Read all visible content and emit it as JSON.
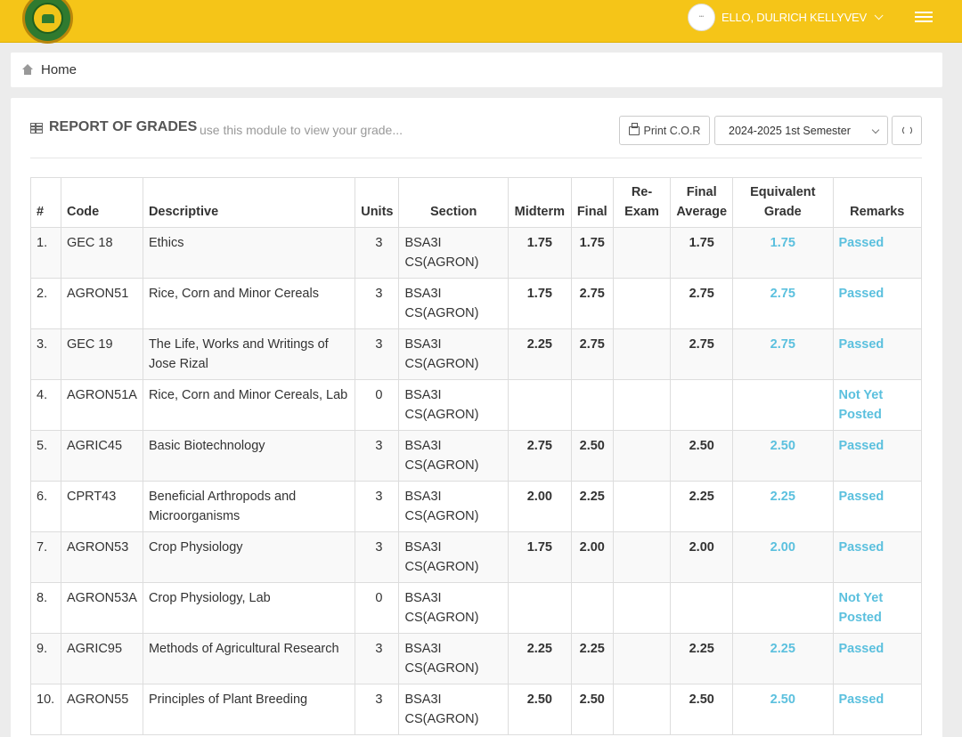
{
  "header": {
    "user_name": "ELLO, DULRICH KELLYVEV"
  },
  "breadcrumb": {
    "label": "Home"
  },
  "panel": {
    "title": "REPORT OF GRADES",
    "subtitle": "use this module to view your grade...",
    "print_label": "Print C.O.R",
    "semester": "2024-2025 1st Semester"
  },
  "colors": {
    "topbar": "#f5c518",
    "accent": "#5bc0de"
  },
  "icons": [
    "logo",
    "avatar",
    "chevron-down-icon",
    "menu-icon",
    "home-icon",
    "table-icon",
    "printer-icon",
    "refresh-icon"
  ],
  "table": {
    "headers": [
      "#",
      "Code",
      "Descriptive",
      "Units",
      "Section",
      "Midterm",
      "Final",
      "Re-Exam",
      "Final Average",
      "Equivalent Grade",
      "Remarks"
    ],
    "rows": [
      {
        "no": "1.",
        "code": "GEC 18",
        "desc": "Ethics",
        "units": "3",
        "section": "BSA3I CS(AGRON)",
        "midterm": "1.75",
        "final": "1.75",
        "reexam": "",
        "avg": "1.75",
        "eq": "1.75",
        "remarks": "Passed"
      },
      {
        "no": "2.",
        "code": "AGRON51",
        "desc": "Rice, Corn and Minor Cereals",
        "units": "3",
        "section": "BSA3I CS(AGRON)",
        "midterm": "1.75",
        "final": "2.75",
        "reexam": "",
        "avg": "2.75",
        "eq": "2.75",
        "remarks": "Passed"
      },
      {
        "no": "3.",
        "code": "GEC 19",
        "desc": "The Life, Works and Writings of Jose Rizal",
        "units": "3",
        "section": "BSA3I CS(AGRON)",
        "midterm": "2.25",
        "final": "2.75",
        "reexam": "",
        "avg": "2.75",
        "eq": "2.75",
        "remarks": "Passed"
      },
      {
        "no": "4.",
        "code": "AGRON51A",
        "desc": "Rice, Corn and Minor Cereals, Lab",
        "units": "0",
        "section": "BSA3I CS(AGRON)",
        "midterm": "",
        "final": "",
        "reexam": "",
        "avg": "",
        "eq": "",
        "remarks": "Not Yet Posted"
      },
      {
        "no": "5.",
        "code": "AGRIC45",
        "desc": "Basic Biotechnology",
        "units": "3",
        "section": "BSA3I CS(AGRON)",
        "midterm": "2.75",
        "final": "2.50",
        "reexam": "",
        "avg": "2.50",
        "eq": "2.50",
        "remarks": "Passed"
      },
      {
        "no": "6.",
        "code": "CPRT43",
        "desc": "Beneficial Arthropods and Microorganisms",
        "units": "3",
        "section": "BSA3I CS(AGRON)",
        "midterm": "2.00",
        "final": "2.25",
        "reexam": "",
        "avg": "2.25",
        "eq": "2.25",
        "remarks": "Passed"
      },
      {
        "no": "7.",
        "code": "AGRON53",
        "desc": "Crop Physiology",
        "units": "3",
        "section": "BSA3I CS(AGRON)",
        "midterm": "1.75",
        "final": "2.00",
        "reexam": "",
        "avg": "2.00",
        "eq": "2.00",
        "remarks": "Passed"
      },
      {
        "no": "8.",
        "code": "AGRON53A",
        "desc": "Crop Physiology, Lab",
        "units": "0",
        "section": "BSA3I CS(AGRON)",
        "midterm": "",
        "final": "",
        "reexam": "",
        "avg": "",
        "eq": "",
        "remarks": "Not Yet Posted"
      },
      {
        "no": "9.",
        "code": "AGRIC95",
        "desc": "Methods of Agricultural Research",
        "units": "3",
        "section": "BSA3I CS(AGRON)",
        "midterm": "2.25",
        "final": "2.25",
        "reexam": "",
        "avg": "2.25",
        "eq": "2.25",
        "remarks": "Passed"
      },
      {
        "no": "10.",
        "code": "AGRON55",
        "desc": "Principles of Plant Breeding",
        "units": "3",
        "section": "BSA3I CS(AGRON)",
        "midterm": "2.50",
        "final": "2.50",
        "reexam": "",
        "avg": "2.50",
        "eq": "2.50",
        "remarks": "Passed"
      }
    ]
  }
}
